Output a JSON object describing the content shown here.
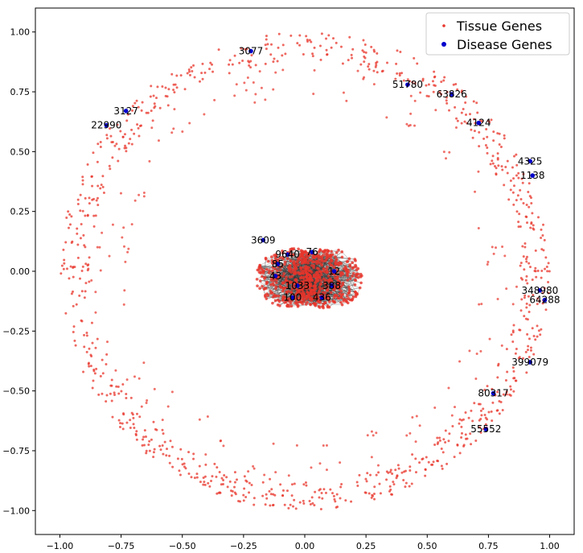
{
  "chart_data": {
    "type": "scatter",
    "title": "",
    "xlabel": "",
    "ylabel": "",
    "xlim": [
      -1.1,
      1.1
    ],
    "ylim": [
      -1.1,
      1.1
    ],
    "xticks": [
      -1.0,
      -0.75,
      -0.5,
      -0.25,
      0.0,
      0.25,
      0.5,
      0.75,
      1.0
    ],
    "yticks": [
      1.0,
      0.75,
      0.5,
      0.25,
      0.0,
      -0.25,
      -0.5,
      -0.75,
      -1.0
    ],
    "xtick_labels": [
      "−1.00",
      "−0.75",
      "−0.50",
      "−0.25",
      "0.00",
      "0.25",
      "0.50",
      "0.75",
      "1.00"
    ],
    "ytick_labels": [
      "1.00",
      "0.75",
      "0.50",
      "0.25",
      "0.00",
      "−0.25",
      "−0.50",
      "−0.75",
      "−1.00"
    ],
    "grid": false,
    "legend_position": "top-right",
    "series": [
      {
        "name": "Tissue Genes",
        "color": "#e8352b",
        "marker": "small-dot",
        "layout": "outer ring of points (radius ~0.9–1.0) and a dense central cluster (radius ~0.2)",
        "ring_radius_range": [
          0.88,
          1.0
        ],
        "cluster_radius": 0.2
      },
      {
        "name": "Disease Genes",
        "color": "#0000cc",
        "marker": "dot",
        "points": [
          {
            "label": "3077",
            "x": -0.22,
            "y": 0.92
          },
          {
            "label": "51780",
            "x": 0.42,
            "y": 0.78
          },
          {
            "label": "63826",
            "x": 0.6,
            "y": 0.74
          },
          {
            "label": "3127",
            "x": -0.73,
            "y": 0.67
          },
          {
            "label": "22990",
            "x": -0.81,
            "y": 0.61
          },
          {
            "label": "4124",
            "x": 0.71,
            "y": 0.62
          },
          {
            "label": "4325",
            "x": 0.92,
            "y": 0.46
          },
          {
            "label": "1138",
            "x": 0.93,
            "y": 0.4
          },
          {
            "label": "3609",
            "x": -0.17,
            "y": 0.13
          },
          {
            "label": "9640",
            "x": -0.07,
            "y": 0.07
          },
          {
            "label": "85",
            "x": -0.11,
            "y": 0.03
          },
          {
            "label": "43",
            "x": -0.12,
            "y": -0.02
          },
          {
            "label": "1033",
            "x": -0.03,
            "y": -0.06
          },
          {
            "label": "100",
            "x": -0.05,
            "y": -0.11
          },
          {
            "label": "436",
            "x": 0.07,
            "y": -0.11
          },
          {
            "label": "388",
            "x": 0.11,
            "y": -0.06
          },
          {
            "label": "12",
            "x": 0.12,
            "y": 0.0
          },
          {
            "label": "76",
            "x": 0.03,
            "y": 0.08
          },
          {
            "label": "348980",
            "x": 0.96,
            "y": -0.08
          },
          {
            "label": "64288",
            "x": 0.98,
            "y": -0.12
          },
          {
            "label": "399079",
            "x": 0.92,
            "y": -0.38
          },
          {
            "label": "80317",
            "x": 0.77,
            "y": -0.51
          },
          {
            "label": "55552",
            "x": 0.74,
            "y": -0.66
          }
        ]
      }
    ],
    "edges": "dark gray lines radiating within the central cluster"
  }
}
